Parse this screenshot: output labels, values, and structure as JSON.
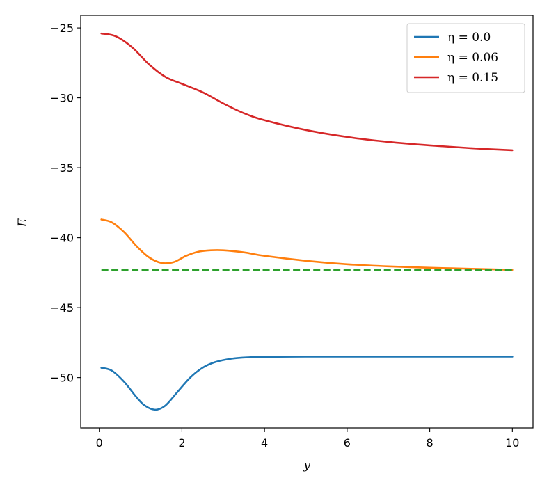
{
  "chart_data": {
    "type": "line",
    "xlabel": "y",
    "ylabel": "E",
    "xlim": [
      -0.45,
      10.5
    ],
    "ylim": [
      -53.6,
      -24.1
    ],
    "xticks": [
      0,
      2,
      4,
      6,
      8,
      10
    ],
    "xtick_labels": [
      "0",
      "2",
      "4",
      "6",
      "8",
      "10"
    ],
    "yticks": [
      -25,
      -30,
      -35,
      -40,
      -45,
      -50
    ],
    "ytick_labels": [
      "−25",
      "−30",
      "−35",
      "−40",
      "−45",
      "−50"
    ],
    "grid": false,
    "legend_position": "top-right",
    "series": [
      {
        "name": "η = 0.0",
        "color": "#1f77b4",
        "dashed": false,
        "in_legend": true,
        "points": [
          [
            0.05,
            -49.3
          ],
          [
            0.3,
            -49.5
          ],
          [
            0.6,
            -50.3
          ],
          [
            0.9,
            -51.4
          ],
          [
            1.1,
            -52.0
          ],
          [
            1.35,
            -52.3
          ],
          [
            1.6,
            -52.0
          ],
          [
            1.9,
            -51.0
          ],
          [
            2.2,
            -50.0
          ],
          [
            2.5,
            -49.3
          ],
          [
            2.8,
            -48.9
          ],
          [
            3.2,
            -48.65
          ],
          [
            3.6,
            -48.55
          ],
          [
            4.0,
            -48.52
          ],
          [
            5.0,
            -48.5
          ],
          [
            6.0,
            -48.5
          ],
          [
            8.0,
            -48.5
          ],
          [
            10.0,
            -48.5
          ]
        ]
      },
      {
        "name": "η = 0.06",
        "color": "#ff7f0e",
        "dashed": false,
        "in_legend": true,
        "points": [
          [
            0.05,
            -38.7
          ],
          [
            0.3,
            -38.9
          ],
          [
            0.6,
            -39.6
          ],
          [
            0.9,
            -40.6
          ],
          [
            1.2,
            -41.4
          ],
          [
            1.5,
            -41.8
          ],
          [
            1.8,
            -41.75
          ],
          [
            2.1,
            -41.3
          ],
          [
            2.4,
            -41.0
          ],
          [
            2.7,
            -40.9
          ],
          [
            3.0,
            -40.9
          ],
          [
            3.5,
            -41.05
          ],
          [
            4.0,
            -41.3
          ],
          [
            5.0,
            -41.65
          ],
          [
            6.0,
            -41.9
          ],
          [
            7.0,
            -42.05
          ],
          [
            8.0,
            -42.15
          ],
          [
            9.0,
            -42.22
          ],
          [
            10.0,
            -42.3
          ]
        ]
      },
      {
        "name": "η = 0.15",
        "color": "#d62728",
        "dashed": false,
        "in_legend": true,
        "points": [
          [
            0.05,
            -25.4
          ],
          [
            0.4,
            -25.6
          ],
          [
            0.8,
            -26.4
          ],
          [
            1.2,
            -27.6
          ],
          [
            1.6,
            -28.5
          ],
          [
            2.0,
            -29.0
          ],
          [
            2.5,
            -29.6
          ],
          [
            3.0,
            -30.4
          ],
          [
            3.5,
            -31.1
          ],
          [
            4.0,
            -31.6
          ],
          [
            5.0,
            -32.3
          ],
          [
            6.0,
            -32.8
          ],
          [
            7.0,
            -33.15
          ],
          [
            8.0,
            -33.4
          ],
          [
            9.0,
            -33.6
          ],
          [
            10.0,
            -33.75
          ]
        ]
      },
      {
        "name": "",
        "color": "#2ca02c",
        "dashed": true,
        "in_legend": false,
        "points": [
          [
            0.05,
            -42.3
          ],
          [
            10.0,
            -42.3
          ]
        ]
      }
    ]
  }
}
